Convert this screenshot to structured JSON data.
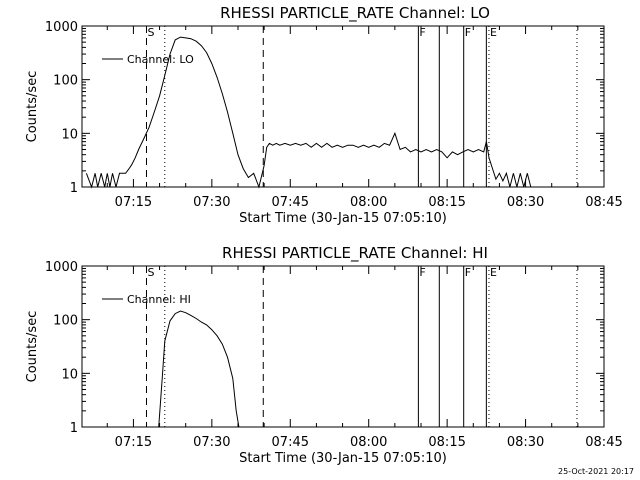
{
  "footer": {
    "timestamp": "25-Oct-2021 20:17"
  },
  "chart_data": [
    {
      "type": "line",
      "title": "RHESSI PARTICLE_RATE Channel: LO",
      "xlabel": "Start Time (30-Jan-15 07:05:10)",
      "ylabel": "Counts/sec",
      "yscale": "log",
      "ylim": [
        1,
        1000
      ],
      "xlim": [
        "07:05:10",
        "08:45:00"
      ],
      "xticks": [
        "07:15",
        "07:30",
        "07:45",
        "08:00",
        "08:15",
        "08:30",
        "08:45"
      ],
      "yticks": [
        "1",
        "10",
        "100",
        "1000"
      ],
      "legend": {
        "position": "top-left",
        "entries": [
          "Channel: LO"
        ]
      },
      "series": [
        {
          "name": "Channel: LO",
          "x": [
            "07:06:00",
            "07:07:00",
            "07:07:40",
            "07:08:10",
            "07:08:50",
            "07:09:30",
            "07:10:00",
            "07:10:30",
            "07:11:00",
            "07:11:40",
            "07:12:20",
            "07:12:50",
            "07:13:30",
            "07:14:10",
            "07:14:40",
            "07:15:20",
            "07:16:00",
            "07:17:00",
            "07:18:00",
            "07:19:00",
            "07:20:00",
            "07:21:00",
            "07:22:00",
            "07:23:00",
            "07:24:00",
            "07:25:00",
            "07:26:00",
            "07:27:00",
            "07:28:00",
            "07:29:00",
            "07:30:00",
            "07:31:00",
            "07:32:00",
            "07:33:00",
            "07:34:00",
            "07:35:00",
            "07:36:00",
            "07:37:00",
            "07:38:00",
            "07:39:00",
            "07:40:00",
            "07:40:30",
            "07:41:00",
            "07:41:40",
            "07:42:20",
            "07:43:00",
            "07:44:00",
            "07:45:00",
            "07:46:00",
            "07:47:00",
            "07:48:00",
            "07:49:00",
            "07:50:00",
            "07:51:00",
            "07:52:00",
            "07:53:00",
            "07:54:00",
            "07:55:00",
            "07:56:00",
            "07:57:00",
            "07:58:00",
            "07:59:00",
            "08:00:00",
            "08:01:00",
            "08:02:00",
            "08:03:00",
            "08:04:00",
            "08:05:00",
            "08:06:00",
            "08:07:00",
            "08:08:00",
            "08:09:00",
            "08:10:00",
            "08:11:00",
            "08:12:00",
            "08:13:00",
            "08:14:00",
            "08:15:00",
            "08:16:00",
            "08:17:00",
            "08:18:00",
            "08:19:00",
            "08:20:00",
            "08:21:00",
            "08:22:00",
            "08:22:30",
            "08:23:00",
            "08:23:40",
            "08:24:20",
            "08:25:00",
            "08:25:40",
            "08:26:20",
            "08:27:00",
            "08:27:40",
            "08:28:20",
            "08:29:00",
            "08:29:40",
            "08:30:20",
            "08:31:00"
          ],
          "values": [
            1.8,
            1.0,
            1.8,
            1.0,
            1.8,
            1.0,
            1.8,
            1.0,
            1.8,
            1.0,
            1.8,
            1.8,
            1.8,
            2.2,
            2.6,
            3.5,
            5,
            8,
            13,
            25,
            50,
            120,
            300,
            550,
            620,
            600,
            580,
            520,
            430,
            320,
            200,
            110,
            55,
            25,
            10,
            4,
            2.2,
            1.5,
            1.8,
            1.0,
            2.5,
            5.5,
            6.5,
            6,
            6.5,
            6,
            6.5,
            6,
            6.5,
            6,
            6.5,
            5.5,
            6.5,
            5.5,
            6.5,
            5.5,
            6,
            5.5,
            6,
            6,
            5.5,
            6,
            5.5,
            6,
            5.5,
            6.5,
            6,
            10,
            5,
            5.5,
            4.5,
            5,
            4.5,
            5,
            4.5,
            5,
            4.5,
            3.5,
            4.5,
            4,
            4.5,
            5,
            4.5,
            5,
            4.5,
            7,
            3.5,
            2.2,
            1.4,
            1.8,
            1.3,
            1.8,
            1.0,
            1.8,
            1.0,
            1.8,
            1.0,
            1.8,
            1.0
          ]
        }
      ],
      "markers": [
        {
          "time": "07:17:30",
          "style": "dashed",
          "label": "S"
        },
        {
          "time": "07:21:00",
          "style": "dotted",
          "label": ""
        },
        {
          "time": "07:39:50",
          "style": "dashed",
          "label": ""
        },
        {
          "time": "08:09:30",
          "style": "solid",
          "label": "F"
        },
        {
          "time": "08:13:30",
          "style": "solid",
          "label": ""
        },
        {
          "time": "08:18:10",
          "style": "solid",
          "label": "F"
        },
        {
          "time": "08:22:30",
          "style": "solid",
          "label": ""
        },
        {
          "time": "08:23:00",
          "style": "dotted",
          "label": "E"
        },
        {
          "time": "08:39:50",
          "style": "dotted",
          "label": ""
        }
      ]
    },
    {
      "type": "line",
      "title": "RHESSI PARTICLE_RATE Channel: HI",
      "xlabel": "Start Time (30-Jan-15 07:05:10)",
      "ylabel": "Counts/sec",
      "yscale": "log",
      "ylim": [
        1,
        1000
      ],
      "xlim": [
        "07:05:10",
        "08:45:00"
      ],
      "xticks": [
        "07:15",
        "07:30",
        "07:45",
        "08:00",
        "08:15",
        "08:30",
        "08:45"
      ],
      "yticks": [
        "1",
        "10",
        "100",
        "1000"
      ],
      "legend": {
        "position": "top-left",
        "entries": [
          "Channel: HI"
        ]
      },
      "series": [
        {
          "name": "Channel: HI",
          "x": [
            "07:19:50",
            "07:20:30",
            "07:21:00",
            "07:22:00",
            "07:23:00",
            "07:24:00",
            "07:25:00",
            "07:26:00",
            "07:27:00",
            "07:28:00",
            "07:29:00",
            "07:30:00",
            "07:31:00",
            "07:32:00",
            "07:33:00",
            "07:34:00",
            "07:34:40",
            "07:35:10"
          ],
          "values": [
            1,
            8,
            40,
            95,
            130,
            145,
            135,
            120,
            105,
            90,
            80,
            65,
            50,
            35,
            20,
            8,
            2,
            1
          ]
        }
      ],
      "markers": [
        {
          "time": "07:17:30",
          "style": "dashed",
          "label": "S"
        },
        {
          "time": "07:21:00",
          "style": "dotted",
          "label": ""
        },
        {
          "time": "07:39:50",
          "style": "dashed",
          "label": ""
        },
        {
          "time": "08:09:30",
          "style": "solid",
          "label": "F"
        },
        {
          "time": "08:13:30",
          "style": "solid",
          "label": ""
        },
        {
          "time": "08:18:10",
          "style": "solid",
          "label": "F"
        },
        {
          "time": "08:22:30",
          "style": "solid",
          "label": ""
        },
        {
          "time": "08:23:00",
          "style": "dotted",
          "label": "E"
        },
        {
          "time": "08:39:50",
          "style": "dotted",
          "label": ""
        }
      ]
    }
  ]
}
